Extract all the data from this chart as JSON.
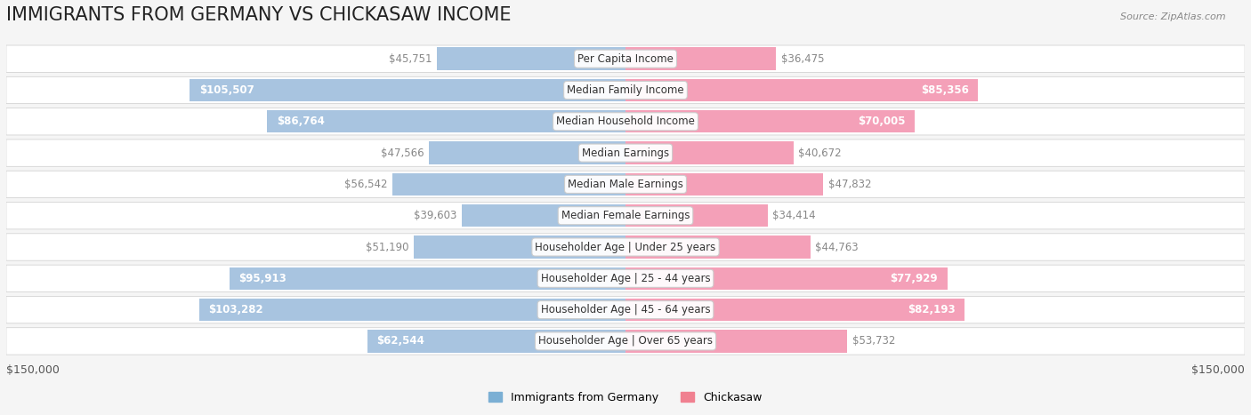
{
  "title": "IMMIGRANTS FROM GERMANY VS CHICKASAW INCOME",
  "source": "Source: ZipAtlas.com",
  "categories": [
    "Per Capita Income",
    "Median Family Income",
    "Median Household Income",
    "Median Earnings",
    "Median Male Earnings",
    "Median Female Earnings",
    "Householder Age | Under 25 years",
    "Householder Age | 25 - 44 years",
    "Householder Age | 45 - 64 years",
    "Householder Age | Over 65 years"
  ],
  "left_values": [
    45751,
    105507,
    86764,
    47566,
    56542,
    39603,
    51190,
    95913,
    103282,
    62544
  ],
  "right_values": [
    36475,
    85356,
    70005,
    40672,
    47832,
    34414,
    44763,
    77929,
    82193,
    53732
  ],
  "left_color": "#a8c4e0",
  "right_color": "#f4a0b8",
  "left_color_legend": "#7bafd4",
  "right_color_legend": "#f08090",
  "left_label_color_normal": "#888888",
  "left_label_color_highlight": "#ffffff",
  "right_label_color_normal": "#888888",
  "right_label_color_highlight": "#ffffff",
  "max_val": 150000,
  "background_color": "#f5f5f5",
  "row_background": "#ffffff",
  "title_fontsize": 15,
  "label_fontsize": 8.5,
  "value_fontsize": 8.5,
  "legend_left": "Immigrants from Germany",
  "legend_right": "Chickasaw"
}
